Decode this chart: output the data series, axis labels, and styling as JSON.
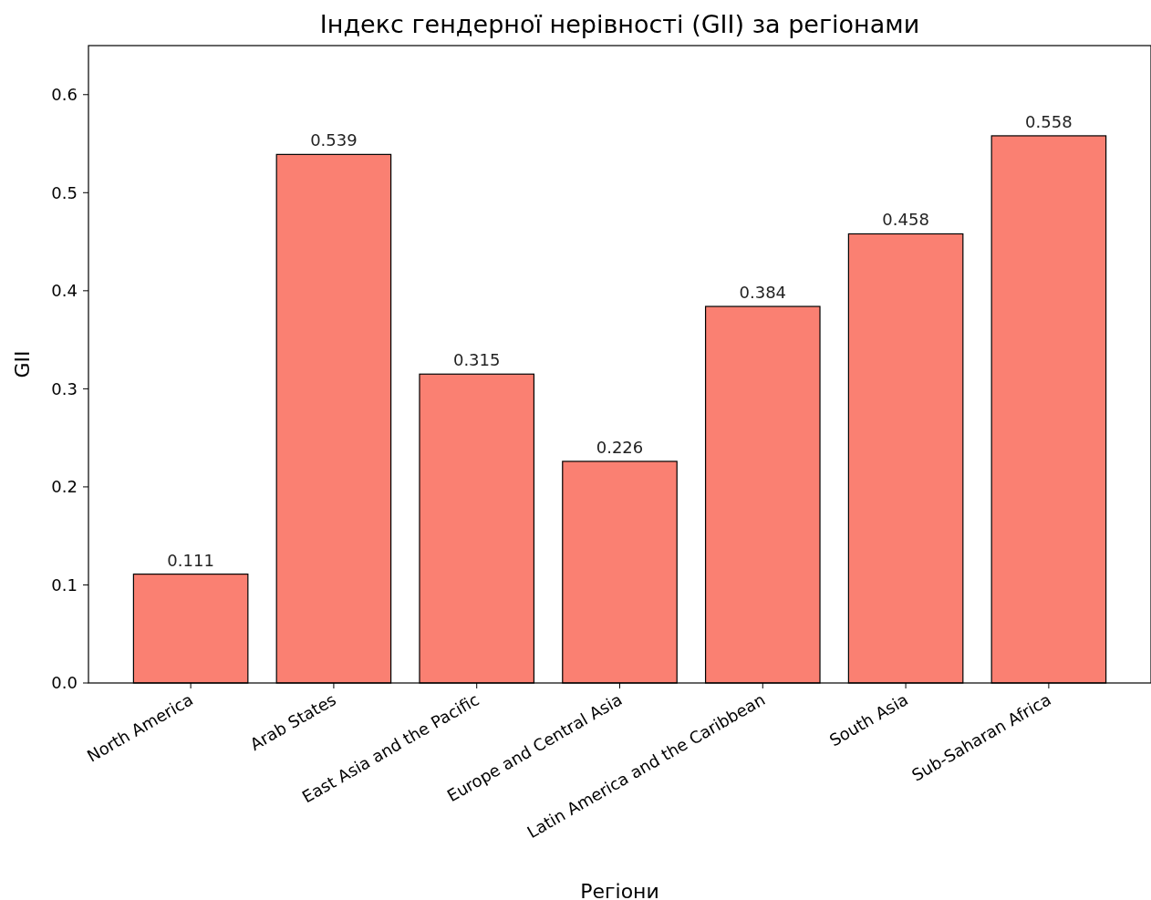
{
  "chart_data": {
    "type": "bar",
    "title": "Індекс гендерної нерівності (GII) за регіонами",
    "xlabel": "Регіони",
    "ylabel": "GII",
    "categories": [
      "North America",
      "Arab States",
      "East Asia and the Pacific",
      "Europe and Central Asia",
      "Latin America and the Caribbean",
      "South Asia",
      "Sub-Saharan Africa"
    ],
    "values": [
      0.111,
      0.539,
      0.315,
      0.226,
      0.384,
      0.458,
      0.558
    ],
    "color": "#fa8072",
    "ylim": [
      0,
      0.65
    ],
    "yticks": [
      {
        "value": 0,
        "label": "0.0"
      },
      {
        "value": 0.1,
        "label": "0.1"
      },
      {
        "value": 0.2,
        "label": "0.2"
      },
      {
        "value": 0.3,
        "label": "0.3"
      },
      {
        "value": 0.4,
        "label": "0.4"
      },
      {
        "value": 0.5,
        "label": "0.5"
      },
      {
        "value": 0.6,
        "label": "0.6"
      }
    ],
    "data_labels": true
  }
}
